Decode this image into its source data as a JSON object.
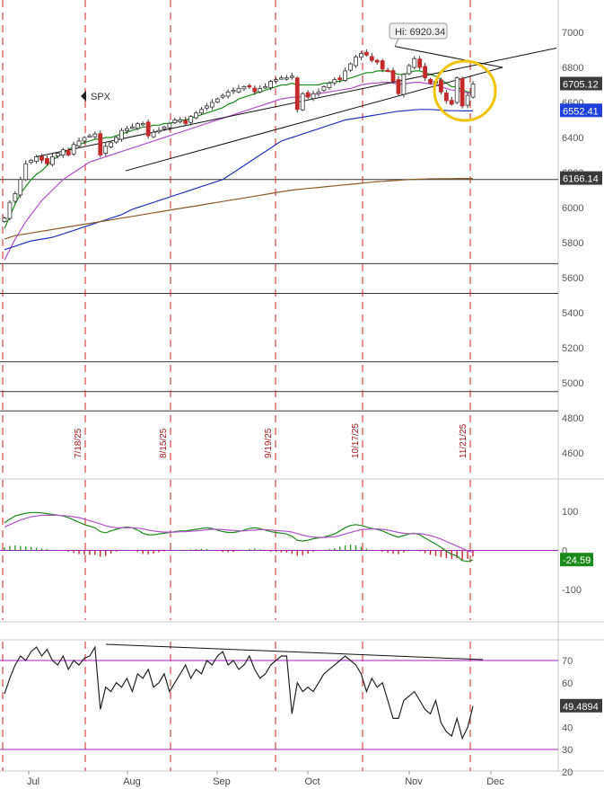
{
  "chart_data": [
    {
      "type": "candlestick",
      "symbol": "SPX",
      "y_ticks": [
        4600,
        4800,
        5000,
        5200,
        5400,
        5600,
        5800,
        6000,
        6200,
        6400,
        6600,
        6800,
        7000
      ],
      "x_labels": [
        "Jul",
        "Aug",
        "Sep",
        "Oct",
        "Nov",
        "Dec"
      ],
      "ylim": [
        4480,
        7080
      ],
      "date_markers": [
        "7/18/25",
        "8/15/25",
        "9/19/25",
        "10/17/25",
        "11/21/25"
      ],
      "price_labels": [
        {
          "text": "6705.12",
          "value": 6705.12,
          "color": "#3a3a3a"
        },
        {
          "text": "6552.41",
          "value": 6552.41,
          "color": "#1f3fd9"
        },
        {
          "text": "6166.14",
          "value": 6166.14,
          "color": "#3a3a3a"
        }
      ],
      "high_annotation": {
        "text": "Hi: 6920.34",
        "value": 6920.34
      },
      "horizontal_levels": [
        6160,
        5680,
        5510,
        5120,
        4950,
        4840
      ],
      "series": [
        {
          "kind": "price",
          "values": [
            5940,
            6030,
            6080,
            6160,
            6250,
            6270,
            6290,
            6270,
            6250,
            6290,
            6310,
            6330,
            6300,
            6360,
            6380,
            6400,
            6410,
            6420,
            6300,
            6350,
            6370,
            6400,
            6440,
            6450,
            6460,
            6480,
            6480,
            6410,
            6430,
            6440,
            6460,
            6480,
            6500,
            6500,
            6480,
            6520,
            6540,
            6560,
            6580,
            6600,
            6620,
            6640,
            6660,
            6670,
            6680,
            6690,
            6690,
            6660,
            6680,
            6690,
            6720,
            6730,
            6740,
            6740,
            6750,
            6560,
            6650,
            6630,
            6650,
            6660,
            6690,
            6710,
            6730,
            6730,
            6780,
            6820,
            6860,
            6880,
            6870,
            6840,
            6830,
            6790,
            6780,
            6720,
            6650,
            6760,
            6810,
            6850,
            6800,
            6740,
            6710,
            6720,
            6660,
            6610,
            6590,
            6740,
            6580,
            6640,
            6705
          ]
        },
        {
          "kind": "sma20",
          "color": "#1a8a1a",
          "values": [
            5880,
            5950,
            6020,
            6080,
            6120,
            6160,
            6190,
            6210,
            6240,
            6270,
            6290,
            6310,
            6330,
            6350,
            6360,
            6370,
            6380,
            6390,
            6390,
            6400,
            6400,
            6410,
            6420,
            6430,
            6440,
            6450,
            6460,
            6460,
            6470,
            6470,
            6480,
            6480,
            6490,
            6500,
            6500,
            6510,
            6520,
            6530,
            6540,
            6550,
            6560,
            6570,
            6590,
            6600,
            6620,
            6630,
            6640,
            6650,
            6660,
            6670,
            6680,
            6690,
            6700,
            6700,
            6710,
            6700,
            6700,
            6700,
            6700,
            6700,
            6710,
            6710,
            6720,
            6720,
            6730,
            6740,
            6750,
            6760,
            6770,
            6770,
            6780,
            6780,
            6780,
            6770,
            6760,
            6760,
            6770,
            6780,
            6780,
            6770,
            6760,
            6750,
            6730,
            6710,
            6690,
            6690,
            6670,
            6660,
            6660
          ]
        },
        {
          "kind": "sma50",
          "color": "#b050c8",
          "values": [
            5700,
            5760,
            5820,
            5870,
            5920,
            5960,
            6000,
            6040,
            6070,
            6100,
            6130,
            6160,
            6180,
            6200,
            6220,
            6240,
            6260,
            6270,
            6280,
            6290,
            6300,
            6310,
            6320,
            6330,
            6340,
            6350,
            6360,
            6370,
            6380,
            6390,
            6400,
            6410,
            6420,
            6430,
            6440,
            6450,
            6460,
            6470,
            6480,
            6490,
            6500,
            6510,
            6520,
            6530,
            6540,
            6550,
            6560,
            6570,
            6580,
            6590,
            6600,
            6610,
            6620,
            6625,
            6630,
            6630,
            6635,
            6640,
            6645,
            6650,
            6655,
            6660,
            6665,
            6670,
            6675,
            6680,
            6690,
            6700,
            6705,
            6710,
            6710,
            6715,
            6715,
            6710,
            6705,
            6705,
            6710,
            6715,
            6715,
            6710,
            6705,
            6700,
            6690,
            6680,
            6670,
            6670,
            6660,
            6655,
            6650
          ]
        },
        {
          "kind": "sma100",
          "color": "#2233bb",
          "values": [
            5760,
            5770,
            5780,
            5790,
            5800,
            5810,
            5815,
            5820,
            5825,
            5830,
            5840,
            5850,
            5860,
            5870,
            5880,
            5890,
            5900,
            5910,
            5920,
            5930,
            5940,
            5950,
            5960,
            5975,
            5990,
            6000,
            6010,
            6020,
            6030,
            6040,
            6050,
            6060,
            6070,
            6080,
            6090,
            6100,
            6110,
            6120,
            6130,
            6140,
            6150,
            6160,
            6180,
            6200,
            6220,
            6240,
            6260,
            6280,
            6300,
            6320,
            6340,
            6360,
            6380,
            6390,
            6400,
            6410,
            6420,
            6430,
            6440,
            6450,
            6460,
            6470,
            6480,
            6490,
            6500,
            6505,
            6510,
            6515,
            6520,
            6525,
            6530,
            6535,
            6540,
            6545,
            6550,
            6552,
            6555,
            6558,
            6560,
            6560,
            6560,
            6558,
            6556,
            6554,
            6553,
            6553,
            6552,
            6552,
            6552
          ]
        },
        {
          "kind": "sma200",
          "color": "#8a5a2a",
          "values": [
            5820,
            5830,
            5840,
            5845,
            5850,
            5855,
            5860,
            5865,
            5870,
            5875,
            5880,
            5885,
            5890,
            5895,
            5900,
            5905,
            5910,
            5915,
            5920,
            5925,
            5930,
            5935,
            5940,
            5945,
            5950,
            5955,
            5960,
            5965,
            5970,
            5975,
            5980,
            5985,
            5990,
            5995,
            6000,
            6005,
            6010,
            6015,
            6020,
            6025,
            6030,
            6035,
            6040,
            6045,
            6050,
            6055,
            6060,
            6065,
            6070,
            6075,
            6080,
            6085,
            6090,
            6095,
            6100,
            6103,
            6106,
            6109,
            6112,
            6115,
            6118,
            6121,
            6124,
            6127,
            6130,
            6133,
            6136,
            6139,
            6142,
            6145,
            6148,
            6150,
            6152,
            6154,
            6156,
            6158,
            6160,
            6161,
            6162,
            6163,
            6164,
            6164,
            6165,
            6165,
            6165,
            6166,
            6166,
            6166,
            6166
          ]
        }
      ]
    },
    {
      "type": "macd",
      "y_ticks": [
        100,
        0,
        -100
      ],
      "ylim": [
        -170,
        180
      ],
      "value_label": {
        "text": "-24.59",
        "value": -24.59,
        "color": "#1a8a1a"
      },
      "series": [
        {
          "kind": "macd",
          "color": "#1a8a1a",
          "values": [
            70,
            80,
            88,
            92,
            95,
            97,
            97,
            96,
            94,
            92,
            90,
            88,
            84,
            78,
            72,
            66,
            62,
            58,
            48,
            45,
            50,
            54,
            58,
            60,
            58,
            52,
            44,
            40,
            40,
            42,
            44,
            46,
            48,
            50,
            50,
            52,
            54,
            56,
            58,
            56,
            52,
            48,
            46,
            46,
            48,
            52,
            56,
            58,
            56,
            52,
            48,
            46,
            44,
            42,
            36,
            26,
            24,
            26,
            30,
            32,
            34,
            38,
            42,
            50,
            58,
            64,
            66,
            64,
            60,
            56,
            54,
            50,
            44,
            38,
            34,
            38,
            42,
            44,
            40,
            32,
            24,
            16,
            8,
            -2,
            -10,
            -14,
            -26,
            -28,
            -24.59
          ]
        },
        {
          "kind": "signal",
          "color": "#b050c8",
          "values": [
            60,
            66,
            72,
            78,
            82,
            86,
            88,
            90,
            90,
            90,
            90,
            89,
            88,
            86,
            84,
            80,
            76,
            72,
            68,
            63,
            60,
            58,
            58,
            58,
            58,
            57,
            55,
            52,
            50,
            48,
            47,
            47,
            47,
            48,
            48,
            49,
            50,
            51,
            53,
            54,
            54,
            53,
            52,
            51,
            50,
            50,
            51,
            52,
            53,
            53,
            52,
            51,
            50,
            49,
            47,
            43,
            39,
            36,
            34,
            33,
            33,
            34,
            35,
            38,
            42,
            46,
            50,
            53,
            54,
            55,
            55,
            54,
            52,
            49,
            46,
            44,
            43,
            43,
            43,
            41,
            38,
            34,
            29,
            23,
            17,
            11,
            5,
            -1,
            -5
          ]
        }
      ]
    },
    {
      "type": "line",
      "indicator": "RSI",
      "y_ticks": [
        70,
        60,
        50,
        40,
        30,
        20
      ],
      "ylim": [
        20,
        80
      ],
      "levels": [
        70,
        30
      ],
      "value_label": {
        "text": "49.4894",
        "value": 49.4894,
        "color": "#3a3a3a"
      },
      "series": [
        {
          "kind": "rsi",
          "color": "#222222",
          "values": [
            55,
            62,
            68,
            72,
            70,
            74,
            76,
            72,
            75,
            70,
            68,
            72,
            66,
            70,
            68,
            71,
            72,
            76,
            48,
            58,
            56,
            60,
            58,
            62,
            56,
            64,
            62,
            66,
            58,
            60,
            64,
            56,
            60,
            64,
            68,
            62,
            66,
            64,
            70,
            68,
            72,
            74,
            68,
            70,
            66,
            68,
            72,
            66,
            62,
            64,
            68,
            70,
            72,
            72,
            46,
            60,
            56,
            58,
            56,
            60,
            64,
            66,
            68,
            70,
            72,
            70,
            68,
            64,
            56,
            62,
            58,
            60,
            52,
            44,
            44,
            52,
            54,
            56,
            52,
            48,
            46,
            52,
            42,
            38,
            36,
            44,
            35,
            40,
            49.4894
          ]
        }
      ]
    }
  ],
  "header": {
    "symbol": "SPX"
  }
}
